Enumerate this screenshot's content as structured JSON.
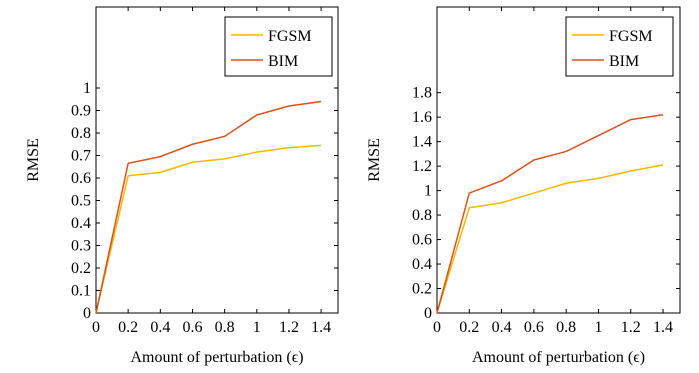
{
  "chart_data": [
    {
      "type": "line",
      "xlabel": "Amount of perturbation (ϵ)",
      "ylabel": "RMSE",
      "x": [
        0,
        0.2,
        0.4,
        0.6,
        0.8,
        1,
        1.2,
        1.4
      ],
      "x_ticks": [
        "0",
        "0.2",
        "0.4",
        "0.6",
        "0.8",
        "1",
        "1.2",
        "1.4"
      ],
      "y_ticks": [
        "0",
        "0.1",
        "0.2",
        "0.3",
        "0.4",
        "0.5",
        "0.6",
        "0.7",
        "0.8",
        "0.9",
        "1"
      ],
      "xlim": [
        0,
        1.505
      ],
      "ylim": [
        0,
        1.36
      ],
      "grid": false,
      "legend_position": "top-right",
      "series": [
        {
          "name": "FGSM",
          "color": "#f5b800",
          "values": [
            0,
            0.61,
            0.625,
            0.67,
            0.685,
            0.715,
            0.735,
            0.745
          ]
        },
        {
          "name": "BIM",
          "color": "#d9531e",
          "values": [
            0,
            0.665,
            0.695,
            0.75,
            0.785,
            0.88,
            0.92,
            0.94
          ]
        }
      ]
    },
    {
      "type": "line",
      "xlabel": "Amount of perturbation (ϵ)",
      "ylabel": "RMSE",
      "x": [
        0,
        0.2,
        0.4,
        0.6,
        0.8,
        1,
        1.2,
        1.4
      ],
      "x_ticks": [
        "0",
        "0.2",
        "0.4",
        "0.6",
        "0.8",
        "1",
        "1.2",
        "1.4"
      ],
      "y_ticks": [
        "0",
        "0.2",
        "0.4",
        "0.6",
        "0.8",
        "1",
        "1.2",
        "1.4",
        "1.6",
        "1.8"
      ],
      "xlim": [
        0,
        1.505
      ],
      "ylim": [
        0,
        2.5
      ],
      "grid": false,
      "legend_position": "top-right",
      "series": [
        {
          "name": "FGSM",
          "color": "#f5b800",
          "values": [
            0,
            0.86,
            0.9,
            0.98,
            1.06,
            1.1,
            1.16,
            1.21
          ]
        },
        {
          "name": "BIM",
          "color": "#d9531e",
          "values": [
            0,
            0.98,
            1.08,
            1.25,
            1.32,
            1.45,
            1.58,
            1.62
          ]
        }
      ]
    }
  ]
}
